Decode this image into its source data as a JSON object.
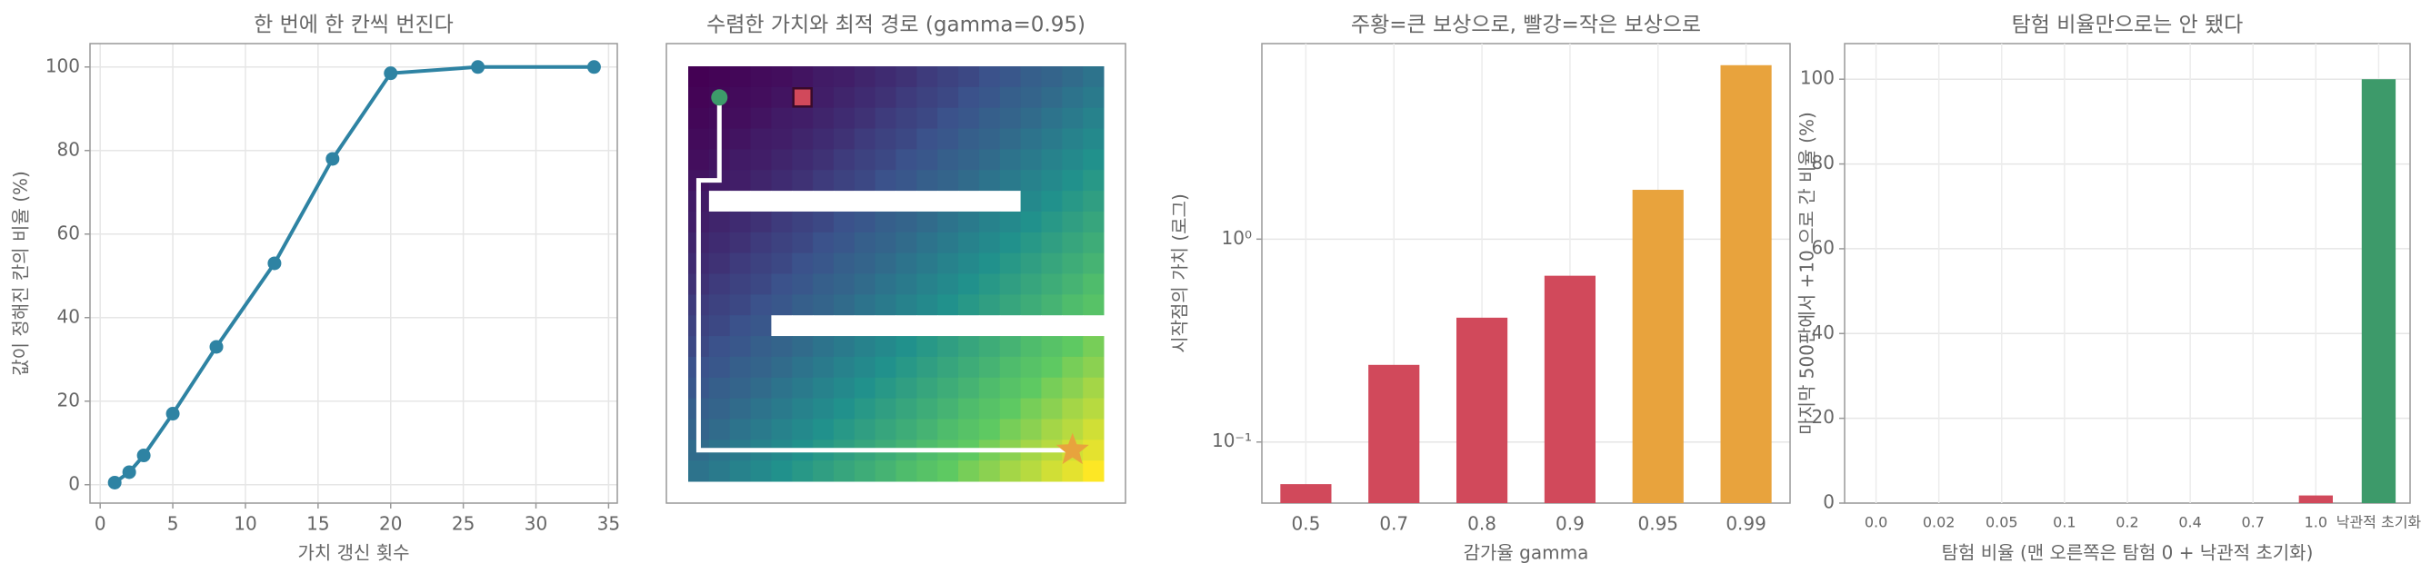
{
  "chart_data": [
    {
      "type": "line",
      "title": "한 번에 한 칸씩 번진다",
      "x_label": "가치 갱신 횟수",
      "y_label": "값이 정해진 칸의 비율 (%)",
      "x": [
        1,
        2,
        3,
        5,
        8,
        12,
        16,
        20,
        26,
        34
      ],
      "values": [
        0.5,
        3,
        7,
        17,
        33,
        53,
        78,
        98.5,
        100,
        100
      ],
      "color": "#2e83a3",
      "xlim": [
        -0.7,
        35.6
      ],
      "xticks": [
        0,
        5,
        10,
        15,
        20,
        25,
        30,
        35
      ],
      "ylim": [
        -4.4,
        105.6
      ],
      "yticks": [
        0,
        20,
        40,
        60,
        80,
        100
      ],
      "grid": true
    },
    {
      "type": "heatmap",
      "title": "수렴한 가치와 최적 경로 (gamma=0.95)",
      "colormap": "viridis",
      "values": [
        [
          0,
          0.01,
          0.02,
          0.03,
          0.04,
          0.06,
          0.08,
          0.09,
          0.11,
          0.13,
          0.15,
          0.18,
          0.2,
          0.22,
          0.25,
          0.27,
          0.3,
          0.32,
          0.35,
          0.38
        ],
        [
          0.01,
          0.02,
          0.03,
          0.04,
          0.06,
          0.08,
          0.09,
          0.11,
          0.13,
          0.15,
          0.18,
          0.2,
          0.22,
          0.25,
          0.27,
          0.3,
          0.32,
          0.35,
          0.38,
          0.41
        ],
        [
          0.02,
          0.03,
          0.04,
          0.06,
          0.08,
          0.09,
          0.11,
          0.13,
          0.15,
          0.18,
          0.2,
          0.22,
          0.25,
          0.27,
          0.3,
          0.32,
          0.35,
          0.38,
          0.41,
          0.44
        ],
        [
          0.03,
          0.04,
          0.06,
          0.08,
          0.09,
          0.11,
          0.13,
          0.15,
          0.18,
          0.2,
          0.22,
          0.25,
          0.27,
          0.3,
          0.32,
          0.35,
          0.38,
          0.41,
          0.44,
          0.47
        ],
        [
          0.04,
          0.06,
          0.08,
          0.09,
          0.11,
          0.13,
          0.15,
          0.18,
          0.2,
          0.22,
          0.25,
          0.27,
          0.3,
          0.32,
          0.35,
          0.38,
          0.41,
          0.44,
          0.47,
          0.5
        ],
        [
          0.06,
          0.08,
          0.09,
          0.11,
          0.13,
          0.15,
          0.18,
          0.2,
          0.22,
          0.25,
          0.27,
          0.3,
          0.32,
          0.35,
          0.38,
          0.41,
          0.44,
          0.47,
          0.5,
          0.53
        ],
        [
          0.08,
          null,
          null,
          null,
          null,
          null,
          null,
          null,
          null,
          null,
          null,
          null,
          null,
          null,
          null,
          null,
          0.47,
          0.5,
          0.53,
          0.56
        ],
        [
          0.09,
          0.11,
          0.13,
          0.15,
          0.18,
          0.2,
          0.22,
          0.25,
          0.27,
          0.3,
          0.32,
          0.35,
          0.38,
          0.41,
          0.44,
          0.47,
          0.5,
          0.53,
          0.56,
          0.59
        ],
        [
          0.11,
          0.13,
          0.15,
          0.18,
          0.2,
          0.22,
          0.25,
          0.27,
          0.3,
          0.32,
          0.35,
          0.38,
          0.41,
          0.44,
          0.47,
          0.5,
          0.53,
          0.56,
          0.59,
          0.62
        ],
        [
          0.13,
          0.15,
          0.18,
          0.2,
          0.22,
          0.25,
          0.27,
          0.3,
          0.32,
          0.35,
          0.38,
          0.41,
          0.44,
          0.47,
          0.5,
          0.53,
          0.56,
          0.59,
          0.62,
          0.65
        ],
        [
          0.15,
          0.18,
          0.2,
          0.22,
          0.25,
          0.27,
          0.3,
          0.32,
          0.35,
          0.38,
          0.41,
          0.44,
          0.47,
          0.5,
          0.53,
          0.56,
          0.59,
          0.62,
          0.65,
          0.69
        ],
        [
          0.18,
          0.2,
          0.22,
          0.25,
          0.27,
          0.3,
          0.32,
          0.35,
          0.38,
          0.41,
          0.44,
          0.47,
          0.5,
          0.53,
          0.56,
          0.59,
          0.62,
          0.65,
          0.69,
          0.72
        ],
        [
          0.2,
          0.22,
          0.25,
          0.27,
          null,
          null,
          null,
          null,
          null,
          null,
          null,
          null,
          null,
          null,
          null,
          null,
          null,
          null,
          null,
          null
        ],
        [
          0.22,
          0.25,
          0.27,
          0.3,
          0.32,
          0.35,
          0.38,
          0.41,
          0.44,
          0.47,
          0.5,
          0.53,
          0.56,
          0.59,
          0.62,
          0.65,
          0.69,
          0.72,
          0.75,
          0.79
        ],
        [
          0.25,
          0.27,
          0.3,
          0.32,
          0.35,
          0.38,
          0.41,
          0.44,
          0.47,
          0.5,
          0.53,
          0.56,
          0.59,
          0.62,
          0.65,
          0.69,
          0.72,
          0.75,
          0.79,
          0.82
        ],
        [
          0.27,
          0.3,
          0.32,
          0.35,
          0.38,
          0.41,
          0.44,
          0.47,
          0.5,
          0.53,
          0.56,
          0.59,
          0.62,
          0.65,
          0.69,
          0.72,
          0.75,
          0.79,
          0.82,
          0.86
        ],
        [
          0.3,
          0.32,
          0.35,
          0.38,
          0.41,
          0.44,
          0.47,
          0.5,
          0.53,
          0.56,
          0.59,
          0.62,
          0.65,
          0.69,
          0.72,
          0.75,
          0.79,
          0.82,
          0.86,
          0.89
        ],
        [
          0.32,
          0.35,
          0.38,
          0.41,
          0.44,
          0.47,
          0.5,
          0.53,
          0.56,
          0.59,
          0.62,
          0.65,
          0.69,
          0.72,
          0.75,
          0.79,
          0.82,
          0.86,
          0.89,
          0.93
        ],
        [
          0.35,
          0.38,
          0.41,
          0.44,
          0.47,
          0.5,
          0.53,
          0.56,
          0.59,
          0.62,
          0.65,
          0.69,
          0.72,
          0.75,
          0.79,
          0.82,
          0.86,
          0.89,
          0.93,
          0.96
        ],
        [
          0.38,
          0.41,
          0.44,
          0.47,
          0.5,
          0.53,
          0.56,
          0.59,
          0.62,
          0.65,
          0.69,
          0.72,
          0.75,
          0.79,
          0.82,
          0.86,
          0.89,
          0.93,
          0.96,
          1
        ]
      ],
      "start": [
        1,
        1
      ],
      "small_goal": [
        1,
        5
      ],
      "big_goal": [
        18,
        18
      ],
      "path": [
        [
          1,
          1
        ],
        [
          5,
          1
        ],
        [
          5,
          0
        ],
        [
          18,
          0
        ],
        [
          18,
          18
        ]
      ]
    },
    {
      "type": "bar",
      "title": "주황=큰 보상으로, 빨강=작은 보상으로",
      "x_label": "감가율 gamma",
      "y_label": "시작점의 가치 (로그)",
      "categories": [
        "0.5",
        "0.7",
        "0.8",
        "0.9",
        "0.95",
        "0.99"
      ],
      "values": [
        0.062,
        0.24,
        0.41,
        0.66,
        1.75,
        7.2
      ],
      "colors": [
        "#d1495b",
        "#d1495b",
        "#d1495b",
        "#d1495b",
        "#e8a33d",
        "#e8a33d"
      ],
      "log_y": true,
      "ylim": [
        0.05,
        9.2
      ],
      "yticks": [
        {
          "value": 0.1,
          "label": "10⁻¹"
        },
        {
          "value": 1,
          "label": "10⁰"
        }
      ],
      "grid": true
    },
    {
      "type": "bar",
      "title": "탐험 비율만으로는 안 됐다",
      "x_label": "탐험 비율 (맨 오른쪽은 탐험 0 + 낙관적 초기화)",
      "y_label": "마지막 500판에서 +10 으로 간 비율 (%)",
      "categories": [
        "0.0",
        "0.02",
        "0.05",
        "0.1",
        "0.2",
        "0.4",
        "0.7",
        "1.0",
        "낙관적 초기화"
      ],
      "values": [
        0,
        0,
        0,
        0,
        0,
        0,
        0,
        1.8,
        100
      ],
      "colors": [
        "#d1495b",
        "#d1495b",
        "#d1495b",
        "#d1495b",
        "#d1495b",
        "#d1495b",
        "#d1495b",
        "#d1495b",
        "#3d9a6a"
      ],
      "ylim": [
        0,
        108.4
      ],
      "yticks": [
        0,
        20,
        40,
        60,
        80,
        100
      ],
      "grid": true,
      "small_xticks": true
    }
  ]
}
